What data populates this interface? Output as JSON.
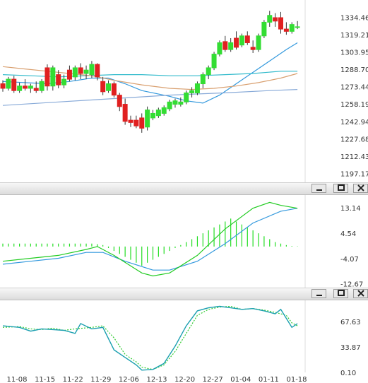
{
  "panels": {
    "macd": {
      "controls": {
        "minimize_icon": "minimize-icon",
        "restore_icon": "restore-icon",
        "close_icon": "close-icon"
      }
    },
    "stoch": {
      "controls": {
        "minimize_icon": "minimize-icon",
        "restore_icon": "restore-icon",
        "close_icon": "close-icon"
      }
    }
  },
  "colors": {
    "bull": "#33dd33",
    "bear": "#e02020",
    "ma_fast": "#3399dd",
    "ma_mid": "#33bbcc",
    "ma_tan": "#d9a070",
    "ma_slow": "#88aad8",
    "macd_line": "#22cc22",
    "signal_line": "#3399dd",
    "hist": "#22dd22",
    "k_line": "#1a9fb0",
    "d_line": "#33cc33"
  },
  "chart_data": [
    {
      "type": "candlestick",
      "x_ticks": [
        "11-08",
        "11-15",
        "11-22",
        "11-29",
        "12-06",
        "12-13",
        "12-20",
        "12-27",
        "01-04",
        "01-11",
        "01-18"
      ],
      "y_ticks": [
        "1334.46",
        "1319.21",
        "1303.95",
        "1288.70",
        "1273.44",
        "1258.19",
        "1242.94",
        "1227.68",
        "1212.43",
        "1197.17"
      ],
      "ylim": [
        1189.5,
        1349.5
      ],
      "candles": [
        {
          "o": 1276,
          "h": 1279,
          "l": 1269,
          "c": 1272
        },
        {
          "o": 1272,
          "h": 1282,
          "l": 1270,
          "c": 1280
        },
        {
          "o": 1280,
          "h": 1283,
          "l": 1268,
          "c": 1270
        },
        {
          "o": 1270,
          "h": 1277,
          "l": 1268,
          "c": 1274
        },
        {
          "o": 1274,
          "h": 1280,
          "l": 1270,
          "c": 1272
        },
        {
          "o": 1272,
          "h": 1276,
          "l": 1268,
          "c": 1274
        },
        {
          "o": 1272,
          "h": 1278,
          "l": 1268,
          "c": 1270
        },
        {
          "o": 1270,
          "h": 1280,
          "l": 1268,
          "c": 1278
        },
        {
          "o": 1290,
          "h": 1293,
          "l": 1270,
          "c": 1274
        },
        {
          "o": 1274,
          "h": 1292,
          "l": 1270,
          "c": 1290
        },
        {
          "o": 1284,
          "h": 1288,
          "l": 1272,
          "c": 1275
        },
        {
          "o": 1275,
          "h": 1284,
          "l": 1272,
          "c": 1280
        },
        {
          "o": 1288,
          "h": 1292,
          "l": 1278,
          "c": 1280
        },
        {
          "o": 1282,
          "h": 1292,
          "l": 1279,
          "c": 1290
        },
        {
          "o": 1290,
          "h": 1294,
          "l": 1280,
          "c": 1285
        },
        {
          "o": 1285,
          "h": 1292,
          "l": 1280,
          "c": 1288
        },
        {
          "o": 1284,
          "h": 1296,
          "l": 1281,
          "c": 1293
        },
        {
          "o": 1293,
          "h": 1294,
          "l": 1279,
          "c": 1282
        },
        {
          "o": 1278,
          "h": 1282,
          "l": 1266,
          "c": 1269
        },
        {
          "o": 1270,
          "h": 1279,
          "l": 1268,
          "c": 1276
        },
        {
          "o": 1276,
          "h": 1278,
          "l": 1264,
          "c": 1266
        },
        {
          "o": 1266,
          "h": 1268,
          "l": 1252,
          "c": 1256
        },
        {
          "o": 1258,
          "h": 1263,
          "l": 1240,
          "c": 1243
        },
        {
          "o": 1244,
          "h": 1248,
          "l": 1238,
          "c": 1242
        },
        {
          "o": 1244,
          "h": 1248,
          "l": 1237,
          "c": 1239
        },
        {
          "o": 1246,
          "h": 1250,
          "l": 1233,
          "c": 1237
        },
        {
          "o": 1238,
          "h": 1256,
          "l": 1235,
          "c": 1253
        },
        {
          "o": 1246,
          "h": 1253,
          "l": 1244,
          "c": 1250
        },
        {
          "o": 1248,
          "h": 1255,
          "l": 1246,
          "c": 1253
        },
        {
          "o": 1250,
          "h": 1257,
          "l": 1248,
          "c": 1255
        },
        {
          "o": 1254,
          "h": 1262,
          "l": 1252,
          "c": 1260
        },
        {
          "o": 1258,
          "h": 1263,
          "l": 1255,
          "c": 1261
        },
        {
          "o": 1258,
          "h": 1264,
          "l": 1256,
          "c": 1260
        },
        {
          "o": 1260,
          "h": 1270,
          "l": 1258,
          "c": 1268
        },
        {
          "o": 1268,
          "h": 1273,
          "l": 1264,
          "c": 1270
        },
        {
          "o": 1268,
          "h": 1278,
          "l": 1266,
          "c": 1276
        },
        {
          "o": 1276,
          "h": 1286,
          "l": 1272,
          "c": 1284
        },
        {
          "o": 1284,
          "h": 1292,
          "l": 1280,
          "c": 1290
        },
        {
          "o": 1290,
          "h": 1304,
          "l": 1288,
          "c": 1302
        },
        {
          "o": 1302,
          "h": 1314,
          "l": 1300,
          "c": 1312
        },
        {
          "o": 1313,
          "h": 1318,
          "l": 1304,
          "c": 1306
        },
        {
          "o": 1306,
          "h": 1316,
          "l": 1304,
          "c": 1312
        },
        {
          "o": 1316,
          "h": 1322,
          "l": 1306,
          "c": 1308
        },
        {
          "o": 1310,
          "h": 1320,
          "l": 1308,
          "c": 1318
        },
        {
          "o": 1318,
          "h": 1322,
          "l": 1310,
          "c": 1312
        },
        {
          "o": 1308,
          "h": 1314,
          "l": 1303,
          "c": 1306
        },
        {
          "o": 1306,
          "h": 1320,
          "l": 1304,
          "c": 1318
        },
        {
          "o": 1318,
          "h": 1332,
          "l": 1316,
          "c": 1330
        },
        {
          "o": 1330,
          "h": 1340,
          "l": 1326,
          "c": 1336
        },
        {
          "o": 1334,
          "h": 1338,
          "l": 1326,
          "c": 1331
        },
        {
          "o": 1334,
          "h": 1339,
          "l": 1320,
          "c": 1324
        },
        {
          "o": 1324,
          "h": 1330,
          "l": 1319,
          "c": 1322
        },
        {
          "o": 1322,
          "h": 1330,
          "l": 1320,
          "c": 1328
        },
        {
          "o": 1326,
          "h": 1331,
          "l": 1324,
          "c": 1326
        }
      ],
      "ma": [
        {
          "color_key": "ma_fast",
          "points": [
            [
              0,
              1278
            ],
            [
              8,
              1276
            ],
            [
              12,
              1278
            ],
            [
              16,
              1281
            ],
            [
              19,
              1281
            ],
            [
              22,
              1276
            ],
            [
              25,
              1270
            ],
            [
              30,
              1265
            ],
            [
              33,
              1261
            ],
            [
              36,
              1259
            ],
            [
              39,
              1266
            ],
            [
              42,
              1276
            ],
            [
              45,
              1286
            ],
            [
              48,
              1296
            ],
            [
              51,
              1306
            ],
            [
              53,
              1312
            ]
          ]
        },
        {
          "color_key": "ma_mid",
          "points": [
            [
              0,
              1284
            ],
            [
              5,
              1283
            ],
            [
              10,
              1282
            ],
            [
              15,
              1283
            ],
            [
              20,
              1284
            ],
            [
              25,
              1284
            ],
            [
              30,
              1283
            ],
            [
              35,
              1283
            ],
            [
              40,
              1284
            ],
            [
              45,
              1285
            ],
            [
              50,
              1287
            ],
            [
              53,
              1287
            ]
          ]
        },
        {
          "color_key": "ma_tan",
          "points": [
            [
              0,
              1291
            ],
            [
              4,
              1289
            ],
            [
              8,
              1287
            ],
            [
              12,
              1285
            ],
            [
              16,
              1283
            ],
            [
              20,
              1279
            ],
            [
              25,
              1275
            ],
            [
              30,
              1272
            ],
            [
              34,
              1271
            ],
            [
              38,
              1272
            ],
            [
              42,
              1274
            ],
            [
              46,
              1277
            ],
            [
              50,
              1281
            ],
            [
              53,
              1285
            ]
          ]
        },
        {
          "color_key": "ma_slow",
          "points": [
            [
              0,
              1257
            ],
            [
              10,
              1260
            ],
            [
              20,
              1263
            ],
            [
              30,
              1266
            ],
            [
              40,
              1268
            ],
            [
              48,
              1270
            ],
            [
              53,
              1271
            ]
          ]
        }
      ]
    },
    {
      "type": "macd",
      "y_ticks": [
        "13.14",
        "4.54",
        "-4.07",
        "-12.67"
      ],
      "ylim": [
        -14.2,
        17.5
      ],
      "histogram": [
        1,
        1,
        1,
        1,
        1,
        1,
        1,
        1,
        1,
        1,
        1,
        1,
        1,
        1,
        1,
        1,
        1,
        0.8,
        0.5,
        -0.5,
        -1.5,
        -2.5,
        -3.5,
        -4.5,
        -5.5,
        -6.5,
        -5.5,
        -4.5,
        -3.5,
        -2.5,
        -1.5,
        -0.5,
        0.5,
        1.5,
        2.5,
        3.5,
        4.5,
        5.5,
        6.5,
        7.5,
        8.5,
        9.5,
        8.5,
        7.5,
        6.5,
        5.5,
        4.5,
        3.5,
        2.5,
        1.5,
        1,
        0.5,
        0.2,
        0.1
      ],
      "macd": [
        [
          0,
          -5
        ],
        [
          5,
          -4
        ],
        [
          10,
          -3
        ],
        [
          15,
          -1
        ],
        [
          17,
          0
        ],
        [
          20,
          -3
        ],
        [
          25,
          -9
        ],
        [
          27,
          -10
        ],
        [
          30,
          -9
        ],
        [
          35,
          -3
        ],
        [
          40,
          6
        ],
        [
          45,
          13
        ],
        [
          48,
          15
        ],
        [
          50,
          14
        ],
        [
          53,
          13
        ]
      ],
      "signal": [
        [
          0,
          -6
        ],
        [
          5,
          -5
        ],
        [
          10,
          -4
        ],
        [
          15,
          -2
        ],
        [
          18,
          -2
        ],
        [
          22,
          -5
        ],
        [
          27,
          -8
        ],
        [
          30,
          -8
        ],
        [
          35,
          -5
        ],
        [
          40,
          1
        ],
        [
          45,
          8
        ],
        [
          50,
          12
        ],
        [
          53,
          13
        ]
      ]
    },
    {
      "type": "stochastic",
      "x_ticks": [
        "11-08",
        "11-15",
        "11-22",
        "11-29",
        "12-06",
        "12-13",
        "12-20",
        "12-27",
        "01-04",
        "01-11",
        "01-18"
      ],
      "y_ticks": [
        "67.63",
        "33.87",
        "0.10"
      ],
      "ylim": [
        0,
        96
      ],
      "k": [
        [
          0,
          62
        ],
        [
          3,
          60
        ],
        [
          5,
          55
        ],
        [
          7,
          58
        ],
        [
          9,
          57
        ],
        [
          11,
          56
        ],
        [
          13,
          52
        ],
        [
          14,
          65
        ],
        [
          16,
          58
        ],
        [
          18,
          60
        ],
        [
          20,
          30
        ],
        [
          22,
          20
        ],
        [
          24,
          10
        ],
        [
          25,
          3
        ],
        [
          27,
          4
        ],
        [
          29,
          12
        ],
        [
          31,
          35
        ],
        [
          33,
          62
        ],
        [
          35,
          82
        ],
        [
          37,
          86
        ],
        [
          39,
          88
        ],
        [
          41,
          86
        ],
        [
          43,
          84
        ],
        [
          45,
          85
        ],
        [
          47,
          82
        ],
        [
          49,
          78
        ],
        [
          50,
          84
        ],
        [
          52,
          60
        ],
        [
          53,
          65
        ]
      ],
      "d": [
        [
          0,
          60
        ],
        [
          3,
          61
        ],
        [
          5,
          58
        ],
        [
          7,
          57
        ],
        [
          9,
          59
        ],
        [
          11,
          56
        ],
        [
          13,
          58
        ],
        [
          16,
          60
        ],
        [
          18,
          62
        ],
        [
          20,
          46
        ],
        [
          22,
          24
        ],
        [
          24,
          14
        ],
        [
          25,
          7
        ],
        [
          27,
          4
        ],
        [
          29,
          10
        ],
        [
          31,
          28
        ],
        [
          33,
          52
        ],
        [
          35,
          76
        ],
        [
          37,
          84
        ],
        [
          39,
          87
        ],
        [
          41,
          88
        ],
        [
          43,
          84
        ],
        [
          45,
          85
        ],
        [
          47,
          83
        ],
        [
          49,
          80
        ],
        [
          51,
          76
        ],
        [
          52,
          66
        ],
        [
          53,
          62
        ]
      ]
    }
  ]
}
